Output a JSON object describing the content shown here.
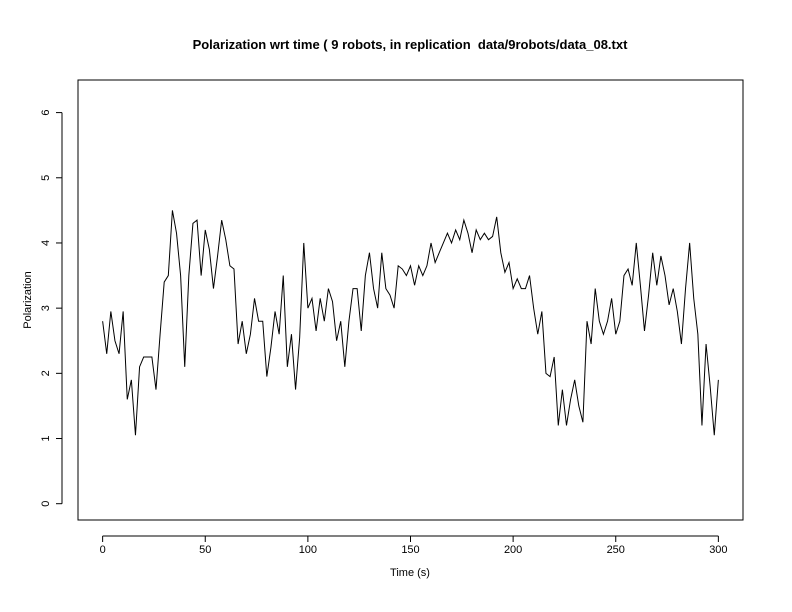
{
  "chart_data": {
    "type": "line",
    "title": "Polarization wrt time ( 9 robots, in replication  data/9robots/data_08.txt",
    "x_label": "Time (s)",
    "y_label": "Polarization",
    "color": "#000000",
    "xlim": [
      -12,
      312
    ],
    "ylim": [
      -0.25,
      6.5
    ],
    "xticks": [
      0,
      50,
      100,
      150,
      200,
      250,
      300
    ],
    "yticks": [
      0,
      1,
      2,
      3,
      4,
      5,
      6
    ],
    "x": [
      0,
      2,
      4,
      6,
      8,
      10,
      12,
      14,
      16,
      18,
      20,
      22,
      24,
      26,
      28,
      30,
      32,
      34,
      36,
      38,
      40,
      42,
      44,
      46,
      48,
      50,
      52,
      54,
      56,
      58,
      60,
      62,
      64,
      66,
      68,
      70,
      72,
      74,
      76,
      78,
      80,
      82,
      84,
      86,
      88,
      90,
      92,
      94,
      96,
      98,
      100,
      102,
      104,
      106,
      108,
      110,
      112,
      114,
      116,
      118,
      120,
      122,
      124,
      126,
      128,
      130,
      132,
      134,
      136,
      138,
      140,
      142,
      144,
      146,
      148,
      150,
      152,
      154,
      156,
      158,
      160,
      162,
      164,
      166,
      168,
      170,
      172,
      174,
      176,
      178,
      180,
      182,
      184,
      186,
      188,
      190,
      192,
      194,
      196,
      198,
      200,
      202,
      204,
      206,
      208,
      210,
      212,
      214,
      216,
      218,
      220,
      222,
      224,
      226,
      228,
      230,
      232,
      234,
      236,
      238,
      240,
      242,
      244,
      246,
      248,
      250,
      252,
      254,
      256,
      258,
      260,
      262,
      264,
      266,
      268,
      270,
      272,
      274,
      276,
      278,
      280,
      282,
      284,
      286,
      288,
      290,
      292,
      294,
      296,
      298,
      300
    ],
    "values": [
      2.8,
      2.3,
      2.95,
      2.5,
      2.3,
      2.95,
      1.6,
      1.9,
      1.05,
      2.1,
      2.25,
      2.25,
      2.25,
      1.75,
      2.6,
      3.4,
      3.5,
      4.5,
      4.15,
      3.5,
      2.1,
      3.5,
      4.3,
      4.35,
      3.5,
      4.2,
      3.9,
      3.3,
      3.8,
      4.35,
      4.05,
      3.65,
      3.6,
      2.45,
      2.8,
      2.3,
      2.6,
      3.15,
      2.8,
      2.8,
      1.95,
      2.4,
      2.95,
      2.6,
      3.5,
      2.1,
      2.6,
      1.75,
      2.55,
      4.0,
      3.0,
      3.15,
      2.65,
      3.15,
      2.8,
      3.3,
      3.1,
      2.5,
      2.8,
      2.1,
      2.8,
      3.3,
      3.3,
      2.65,
      3.5,
      3.85,
      3.3,
      3.0,
      3.85,
      3.3,
      3.2,
      3.0,
      3.65,
      3.6,
      3.5,
      3.65,
      3.35,
      3.65,
      3.5,
      3.65,
      4.0,
      3.7,
      3.85,
      4.0,
      4.15,
      4.0,
      4.2,
      4.05,
      4.35,
      4.15,
      3.85,
      4.2,
      4.05,
      4.15,
      4.05,
      4.1,
      4.4,
      3.85,
      3.55,
      3.7,
      3.3,
      3.45,
      3.3,
      3.3,
      3.5,
      3.0,
      2.6,
      2.95,
      2.0,
      1.95,
      2.25,
      1.2,
      1.75,
      1.2,
      1.6,
      1.9,
      1.5,
      1.25,
      2.8,
      2.45,
      3.3,
      2.8,
      2.6,
      2.8,
      3.15,
      2.6,
      2.8,
      3.5,
      3.6,
      3.35,
      4.0,
      3.35,
      2.65,
      3.2,
      3.85,
      3.35,
      3.8,
      3.5,
      3.05,
      3.3,
      2.95,
      2.45,
      3.3,
      4.0,
      3.15,
      2.6,
      1.2,
      2.45,
      1.8,
      1.05,
      1.9
    ]
  }
}
